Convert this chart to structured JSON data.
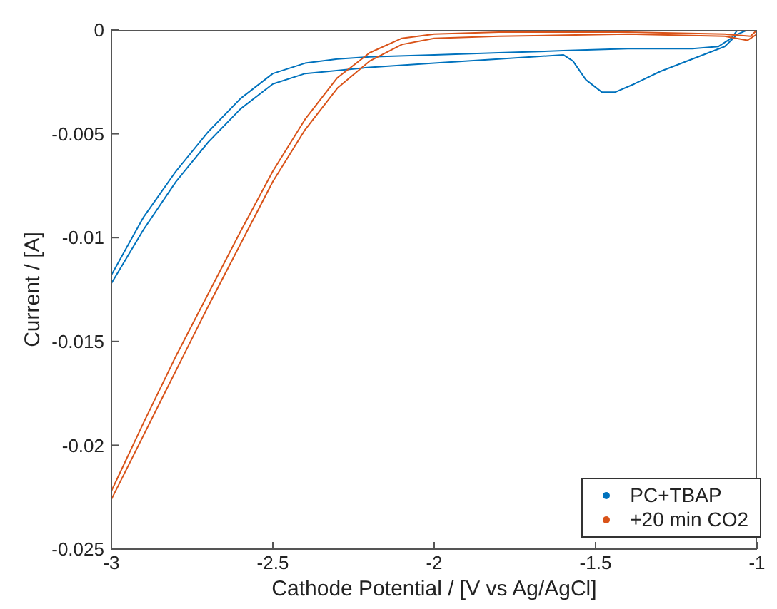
{
  "chart_data": {
    "type": "line",
    "xlabel": "Cathode Potential / [V vs Ag/AgCl]",
    "ylabel": "Current / [A]",
    "xlim": [
      -3,
      -1
    ],
    "xticks": [
      -3,
      -2.5,
      -2,
      -1.5,
      -1
    ],
    "ylim": [
      -0.025,
      0
    ],
    "yticks": [
      -0.025,
      -0.02,
      -0.015,
      -0.01,
      -0.005,
      0
    ],
    "grid": false,
    "legend": "bottom right",
    "marker": "none",
    "series": [
      {
        "name": "PC+TBAP",
        "color": "#0072bd",
        "x": [
          -1.06,
          -1.08,
          -1.12,
          -1.2,
          -1.4,
          -1.6,
          -1.8,
          -2.0,
          -2.2,
          -2.3,
          -2.4,
          -2.5,
          -2.6,
          -2.7,
          -2.8,
          -2.9,
          -3.0,
          -3.0,
          -2.9,
          -2.8,
          -2.7,
          -2.6,
          -2.5,
          -2.4,
          -2.2,
          -2.0,
          -1.8,
          -1.6,
          -1.57,
          -1.53,
          -1.48,
          -1.44,
          -1.38,
          -1.3,
          -1.2,
          -1.1,
          -1.06,
          -1.03
        ],
        "values": [
          0,
          -0.0004,
          -0.0008,
          -0.0009,
          -0.0009,
          -0.001,
          -0.0011,
          -0.0012,
          -0.0013,
          -0.0014,
          -0.0016,
          -0.0021,
          -0.0033,
          -0.0049,
          -0.0068,
          -0.009,
          -0.0118,
          -0.0122,
          -0.0096,
          -0.0073,
          -0.0054,
          -0.0038,
          -0.0026,
          -0.0021,
          -0.0018,
          -0.0016,
          -0.0014,
          -0.0012,
          -0.0015,
          -0.0024,
          -0.003,
          -0.003,
          -0.0026,
          -0.002,
          -0.0014,
          -0.0008,
          -0.0002,
          0
        ]
      },
      {
        "name": "+20 min CO2",
        "color": "#d95319",
        "x": [
          -1.0,
          -1.02,
          -1.1,
          -1.4,
          -1.8,
          -2.0,
          -2.1,
          -2.2,
          -2.3,
          -2.4,
          -2.5,
          -2.6,
          -2.7,
          -2.8,
          -2.9,
          -3.0,
          -3.0,
          -2.9,
          -2.8,
          -2.7,
          -2.6,
          -2.5,
          -2.4,
          -2.3,
          -2.2,
          -2.1,
          -2.0,
          -1.8,
          -1.4,
          -1.1,
          -1.03,
          -1.0
        ],
        "values": [
          0,
          -0.0003,
          -0.0002,
          -0.0001,
          -0.0001,
          -0.0002,
          -0.0004,
          -0.0011,
          -0.0023,
          -0.0043,
          -0.0068,
          -0.0097,
          -0.0127,
          -0.0157,
          -0.0189,
          -0.0222,
          -0.0226,
          -0.0195,
          -0.0164,
          -0.0133,
          -0.0103,
          -0.0073,
          -0.0048,
          -0.0028,
          -0.0015,
          -0.0007,
          -0.0004,
          -0.0003,
          -0.0002,
          -0.0003,
          -0.0005,
          -0.0002
        ]
      }
    ]
  }
}
